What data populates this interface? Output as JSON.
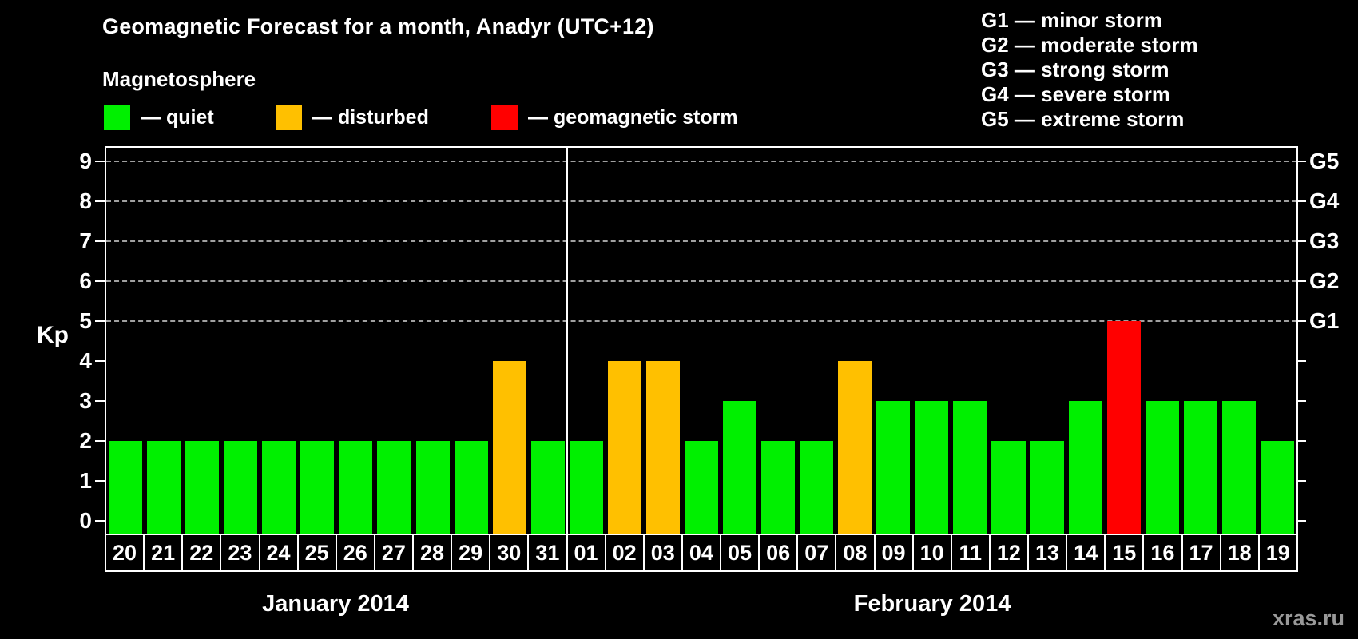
{
  "header": {
    "title": "Geomagnetic Forecast for a month, Anadyr (UTC+12)",
    "subtitle": "Magnetosphere",
    "legend": [
      {
        "name": "quiet",
        "label": "— quiet",
        "color": "#00f000"
      },
      {
        "name": "disturbed",
        "label": "— disturbed",
        "color": "#ffc000"
      },
      {
        "name": "storm",
        "label": "— geomagnetic storm",
        "color": "#ff0000"
      }
    ],
    "storm_scale": [
      "G1 — minor storm",
      "G2 — moderate storm",
      "G3 — strong storm",
      "G4 — severe storm",
      "G5 — extreme storm"
    ]
  },
  "watermark": "xras.ru",
  "chart_data": {
    "type": "bar",
    "title": "Geomagnetic Forecast for a month, Anadyr (UTC+12)",
    "ylabel": "Kp",
    "ylim": [
      0,
      9
    ],
    "y_ticks": [
      0,
      1,
      2,
      3,
      4,
      5,
      6,
      7,
      8,
      9
    ],
    "gridlines_at_kp": [
      5,
      6,
      7,
      8,
      9
    ],
    "grid": "dashed horizontal at Kp 5-9 only",
    "right_axis": [
      {
        "kp": 5,
        "label": "G1"
      },
      {
        "kp": 6,
        "label": "G2"
      },
      {
        "kp": 7,
        "label": "G3"
      },
      {
        "kp": 8,
        "label": "G4"
      },
      {
        "kp": 9,
        "label": "G5"
      }
    ],
    "status_colors": {
      "quiet": "#00f000",
      "disturbed": "#ffc000",
      "storm": "#ff0000"
    },
    "groups": [
      {
        "label": "January 2014",
        "bars": [
          {
            "day": "20",
            "kp": 2,
            "status": "quiet"
          },
          {
            "day": "21",
            "kp": 2,
            "status": "quiet"
          },
          {
            "day": "22",
            "kp": 2,
            "status": "quiet"
          },
          {
            "day": "23",
            "kp": 2,
            "status": "quiet"
          },
          {
            "day": "24",
            "kp": 2,
            "status": "quiet"
          },
          {
            "day": "25",
            "kp": 2,
            "status": "quiet"
          },
          {
            "day": "26",
            "kp": 2,
            "status": "quiet"
          },
          {
            "day": "27",
            "kp": 2,
            "status": "quiet"
          },
          {
            "day": "28",
            "kp": 2,
            "status": "quiet"
          },
          {
            "day": "29",
            "kp": 2,
            "status": "quiet"
          },
          {
            "day": "30",
            "kp": 4,
            "status": "disturbed"
          },
          {
            "day": "31",
            "kp": 2,
            "status": "quiet"
          }
        ]
      },
      {
        "label": "February 2014",
        "bars": [
          {
            "day": "01",
            "kp": 2,
            "status": "quiet"
          },
          {
            "day": "02",
            "kp": 4,
            "status": "disturbed"
          },
          {
            "day": "03",
            "kp": 4,
            "status": "disturbed"
          },
          {
            "day": "04",
            "kp": 2,
            "status": "quiet"
          },
          {
            "day": "05",
            "kp": 3,
            "status": "quiet"
          },
          {
            "day": "06",
            "kp": 2,
            "status": "quiet"
          },
          {
            "day": "07",
            "kp": 2,
            "status": "quiet"
          },
          {
            "day": "08",
            "kp": 4,
            "status": "disturbed"
          },
          {
            "day": "09",
            "kp": 3,
            "status": "quiet"
          },
          {
            "day": "10",
            "kp": 3,
            "status": "quiet"
          },
          {
            "day": "11",
            "kp": 3,
            "status": "quiet"
          },
          {
            "day": "12",
            "kp": 2,
            "status": "quiet"
          },
          {
            "day": "13",
            "kp": 2,
            "status": "quiet"
          },
          {
            "day": "14",
            "kp": 3,
            "status": "quiet"
          },
          {
            "day": "15",
            "kp": 5,
            "status": "storm"
          },
          {
            "day": "16",
            "kp": 3,
            "status": "quiet"
          },
          {
            "day": "17",
            "kp": 3,
            "status": "quiet"
          },
          {
            "day": "18",
            "kp": 3,
            "status": "quiet"
          },
          {
            "day": "19",
            "kp": 2,
            "status": "quiet"
          }
        ]
      }
    ]
  }
}
